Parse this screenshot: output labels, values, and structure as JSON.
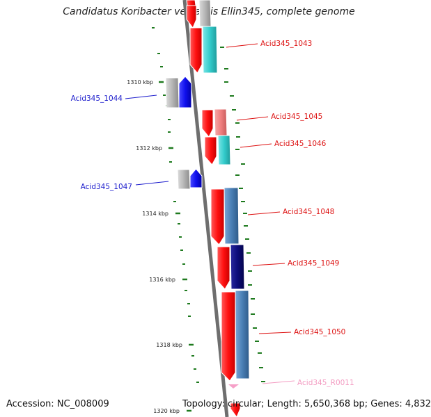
{
  "title": "Candidatus Koribacter versatilis Ellin345, complete genome",
  "footer": {
    "accession": "Accession: NC_008009",
    "topology": "Topology: circular; Length: 5,650,368 bp; Genes: 4,832"
  },
  "ticks": [
    "1310 kbp",
    "1312 kbp",
    "1314 kbp",
    "1316 kbp",
    "1318 kbp",
    "1320 kbp"
  ],
  "genes": [
    {
      "label": "Acid345_1043",
      "color": "#dd1111"
    },
    {
      "label": "Acid345_1044",
      "color": "#1a1acc"
    },
    {
      "label": "Acid345_1045",
      "color": "#dd1111"
    },
    {
      "label": "Acid345_1046",
      "color": "#dd1111"
    },
    {
      "label": "Acid345_1047",
      "color": "#1a1acc"
    },
    {
      "label": "Acid345_1048",
      "color": "#dd1111"
    },
    {
      "label": "Acid345_1049",
      "color": "#dd1111"
    },
    {
      "label": "Acid345_1050",
      "color": "#dd1111"
    },
    {
      "label": "Acid345_R0011",
      "color": "#f39cc2"
    }
  ],
  "colors": {
    "forward_cds": "#ff1a1a",
    "reverse_cds": "#1111ee",
    "cog_cyan": "#33cccc",
    "cog_steel": "#4a7fb5",
    "cog_navy": "#0c0c7a",
    "cog_pink": "#f08080",
    "cog_gray": "#b5b5b5",
    "gc_skew": "#1e7a1e",
    "backbone": "#808080",
    "rna": "#f6a0c8"
  }
}
